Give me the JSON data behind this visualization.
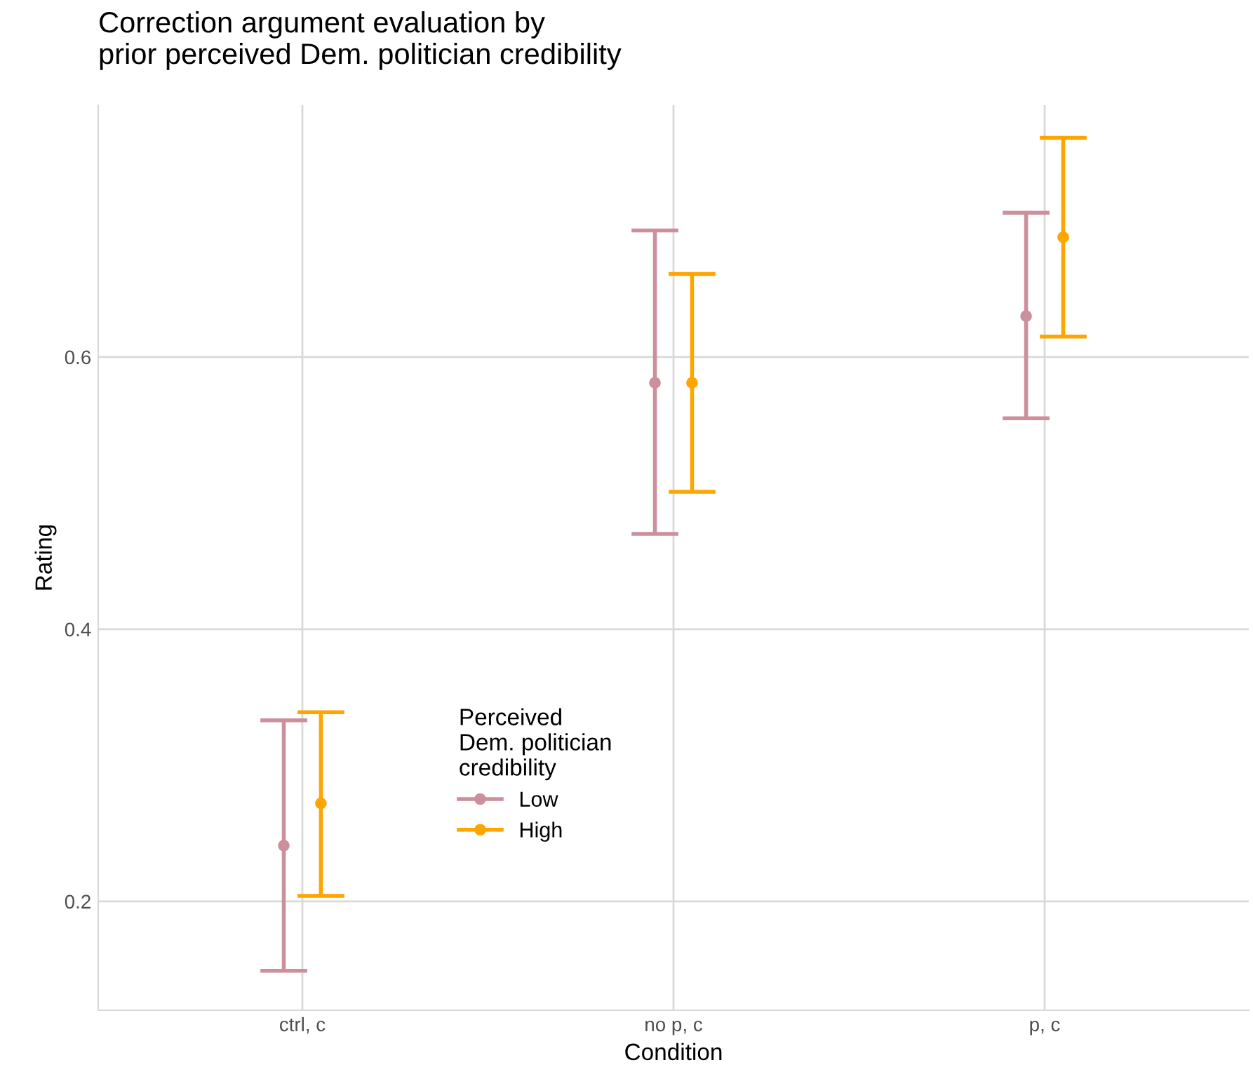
{
  "chart_data": {
    "type": "scatter",
    "title": "Correction argument evaluation by\nprior perceived Dem. politician credibility",
    "xlabel": "Condition",
    "ylabel": "Rating",
    "legend_title": "Perceived\nDem. politician\ncredibility",
    "categories": [
      "ctrl, c",
      "no p, c",
      "p, c"
    ],
    "series": [
      {
        "name": "Low",
        "color": "#cc8f9c",
        "values": [
          0.241,
          0.581,
          0.63
        ],
        "errors": [
          [
            0.149,
            0.333
          ],
          [
            0.47,
            0.693
          ],
          [
            0.555,
            0.706
          ]
        ]
      },
      {
        "name": "High",
        "color": "#ffa500",
        "values": [
          0.272,
          0.581,
          0.688
        ],
        "errors": [
          [
            0.204,
            0.339
          ],
          [
            0.501,
            0.661
          ],
          [
            0.615,
            0.761
          ]
        ]
      }
    ],
    "ylim": [
      0.12,
      0.785
    ],
    "yticks": [
      0.2,
      0.4,
      0.6
    ],
    "grid": true,
    "legend": "center",
    "marker": "circle"
  }
}
